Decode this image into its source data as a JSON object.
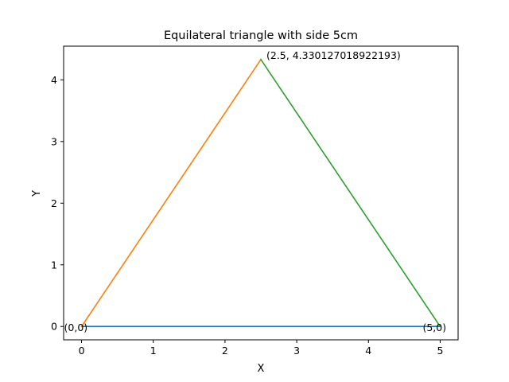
{
  "chart_data": {
    "type": "line",
    "title": "Equilateral triangle with side 5cm",
    "xlabel": "X",
    "ylabel": "Y",
    "xlim": [
      -0.25,
      5.25
    ],
    "ylim": [
      -0.2165,
      4.5466
    ],
    "xticks": [
      0,
      1,
      2,
      3,
      4,
      5
    ],
    "yticks": [
      0,
      1,
      2,
      3,
      4
    ],
    "grid": false,
    "series": [
      {
        "x": [
          0,
          5
        ],
        "y": [
          0,
          0
        ],
        "color": "#1f77b4"
      },
      {
        "x": [
          0,
          2.5
        ],
        "y": [
          0,
          4.330127018922193
        ],
        "color": "#ff7f0e"
      },
      {
        "x": [
          2.5,
          5
        ],
        "y": [
          4.330127018922193,
          0
        ],
        "color": "#2ca02c"
      }
    ],
    "annotations": [
      {
        "text": "(0,0)",
        "x": 0,
        "y": 0
      },
      {
        "text": "(5,0)",
        "x": 5,
        "y": 0
      },
      {
        "text": "(2.5, 4.330127018922193)",
        "x": 2.5,
        "y": 4.330127018922193
      }
    ]
  }
}
